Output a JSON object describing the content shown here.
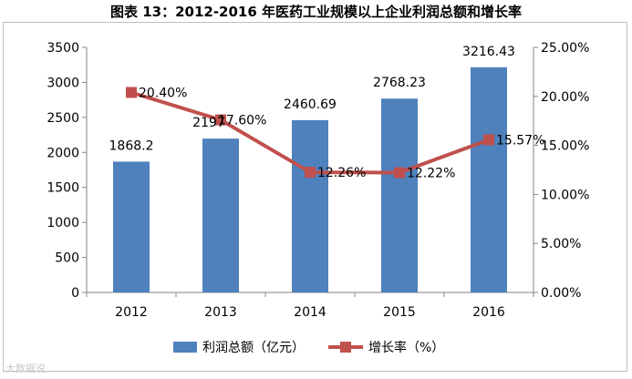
{
  "title": "图表 13：2012-2016 年医药工业规模以上企业利润总额和增长率",
  "watermark": "大数据说",
  "chart_data": {
    "type": "bar+line",
    "categories": [
      "2012",
      "2013",
      "2014",
      "2015",
      "2016"
    ],
    "series": [
      {
        "name": "利润总额（亿元）",
        "type": "bar",
        "axis": "left",
        "values": [
          1868.2,
          2197,
          2460.69,
          2768.23,
          3216.43
        ],
        "labels": [
          "1868.2",
          "2197",
          "2460.69",
          "2768.23",
          "3216.43"
        ],
        "color": "#4f81bd"
      },
      {
        "name": "增长率（%）",
        "type": "line",
        "axis": "right",
        "values": [
          20.4,
          17.6,
          12.26,
          12.22,
          15.57
        ],
        "labels": [
          "20.40%",
          "17.60%",
          "12.26%",
          "12.22%",
          "15.57%"
        ],
        "color": "#c0504d"
      }
    ],
    "left_axis": {
      "min": 0,
      "max": 3500,
      "step": 500,
      "ticks": [
        "0",
        "500",
        "1000",
        "1500",
        "2000",
        "2500",
        "3000",
        "3500"
      ]
    },
    "right_axis": {
      "min": 0,
      "max": 25,
      "step": 5,
      "ticks": [
        "0.00%",
        "5.00%",
        "10.00%",
        "15.00%",
        "20.00%",
        "25.00%"
      ]
    },
    "legend_position": "bottom"
  }
}
